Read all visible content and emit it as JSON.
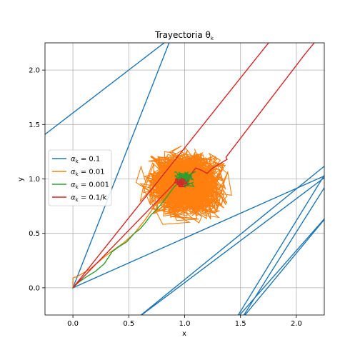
{
  "chart_data": {
    "type": "line",
    "title": "Trayectoria θ",
    "title_subscript": "k",
    "xlabel": "x",
    "ylabel": "y",
    "xlim": [
      -0.25,
      2.25
    ],
    "ylim": [
      -0.25,
      2.25
    ],
    "xticks": [
      0.0,
      0.5,
      1.0,
      1.5,
      2.0
    ],
    "yticks": [
      0.0,
      0.5,
      1.0,
      1.5,
      2.0
    ],
    "xtick_labels": [
      "0.0",
      "0.5",
      "1.0",
      "1.5",
      "2.0"
    ],
    "ytick_labels": [
      "0.0",
      "0.5",
      "1.0",
      "1.5",
      "2.0"
    ],
    "grid": true,
    "legend_position": "center-left",
    "series": [
      {
        "name": "α",
        "name_subscript": "k",
        "name_suffix": " = 0.1",
        "color": "#1f77b4",
        "style": "path",
        "x": [
          -0.3,
          0.88,
          0.0,
          2.3,
          0.55,
          2.35,
          1.45,
          2.35,
          1.5,
          2.3
        ],
        "y": [
          1.37,
          2.3,
          0.0,
          1.05,
          -0.3,
          1.2,
          -0.3,
          0.75,
          -0.3,
          1.0
        ]
      },
      {
        "name": "α",
        "name_subscript": "k",
        "name_suffix": " = 0.01",
        "color": "#ff7f0e",
        "style": "cloud",
        "center": [
          1.0,
          0.95
        ],
        "spread": [
          0.5,
          0.45
        ],
        "x": [
          0.0,
          0.0,
          0.05,
          0.15,
          0.3,
          0.45,
          0.55,
          0.65,
          0.75
        ],
        "y": [
          0.0,
          0.09,
          0.11,
          0.17,
          0.3,
          0.41,
          0.5,
          0.63,
          0.78
        ]
      },
      {
        "name": "α",
        "name_subscript": "k",
        "name_suffix": " = 0.001",
        "color": "#2ca02c",
        "style": "path",
        "x": [
          0.0,
          0.05,
          0.12,
          0.2,
          0.28,
          0.35,
          0.4,
          0.48,
          0.55,
          0.6,
          0.65,
          0.7,
          0.75,
          0.8,
          0.85,
          0.9,
          0.95,
          1.0,
          1.05,
          1.1
        ],
        "y": [
          0.0,
          0.05,
          0.1,
          0.15,
          0.22,
          0.33,
          0.37,
          0.42,
          0.5,
          0.54,
          0.6,
          0.67,
          0.72,
          0.78,
          0.85,
          0.92,
          0.97,
          1.0,
          1.04,
          1.07
        ]
      },
      {
        "name": "α",
        "name_subscript": "k",
        "name_suffix": " = 0.1/k",
        "color": "#d62728",
        "style": "path",
        "x": [
          1.79,
          0.0,
          0.9,
          0.93,
          0.95,
          1.0,
          0.97,
          1.02,
          1.06,
          1.1,
          1.15,
          1.2,
          1.25,
          1.38,
          1.37,
          2.08,
          2.2
        ],
        "y": [
          2.3,
          0.0,
          0.95,
          1.0,
          0.93,
          1.0,
          0.95,
          0.98,
          1.05,
          1.1,
          1.08,
          1.05,
          1.1,
          1.18,
          1.2,
          2.15,
          2.3
        ]
      }
    ]
  }
}
